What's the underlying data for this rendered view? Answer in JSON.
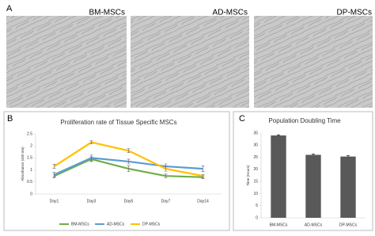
{
  "figure": {
    "panel_a": {
      "label": "A",
      "images": [
        "BM-MSCs",
        "AD-MSCs",
        "DP-MSCs"
      ]
    },
    "panel_b": {
      "label": "B"
    },
    "panel_c": {
      "label": "C"
    }
  },
  "chart_data": [
    {
      "type": "line",
      "title": "Proliferation rate of Tissue Specific MSCs",
      "y_label": "Absorbance (450 nm)",
      "categories": [
        "Day1",
        "Day3",
        "Day5",
        "Day7",
        "Day14"
      ],
      "series": [
        {
          "name": "BM-MSCs",
          "color": "#70ad47",
          "values": [
            0.75,
            1.45,
            1.05,
            0.75,
            0.7
          ],
          "errors": [
            0.08,
            0.1,
            0.12,
            0.08,
            0.06
          ]
        },
        {
          "name": "AD-MSCs",
          "color": "#5b9bd5",
          "values": [
            0.8,
            1.5,
            1.35,
            1.15,
            1.05
          ],
          "errors": [
            0.1,
            0.12,
            0.1,
            0.1,
            0.12
          ]
        },
        {
          "name": "DP-MSCs",
          "color": "#ffc000",
          "values": [
            1.15,
            2.15,
            1.8,
            1.05,
            0.75
          ],
          "errors": [
            0.08,
            0.06,
            0.08,
            0.1,
            0.06
          ]
        }
      ],
      "ylim": [
        0,
        2.5
      ],
      "yticks": [
        0,
        0.5,
        1,
        1.5,
        2,
        2.5
      ],
      "grid": false,
      "legend": "bottom"
    },
    {
      "type": "bar",
      "title": "Population Doubling Time",
      "y_label": "Time (Hours)",
      "categories": [
        "BM-MSCs",
        "AD-MSCs",
        "DP-MSCs"
      ],
      "values": [
        34,
        26,
        25.3
      ],
      "errors": [
        0.3,
        0.3,
        0.4
      ],
      "color": "#595959",
      "ylim": [
        0,
        35
      ],
      "yticks": [
        0,
        5,
        10,
        15,
        20,
        25,
        30,
        35
      ],
      "grid": false
    }
  ]
}
